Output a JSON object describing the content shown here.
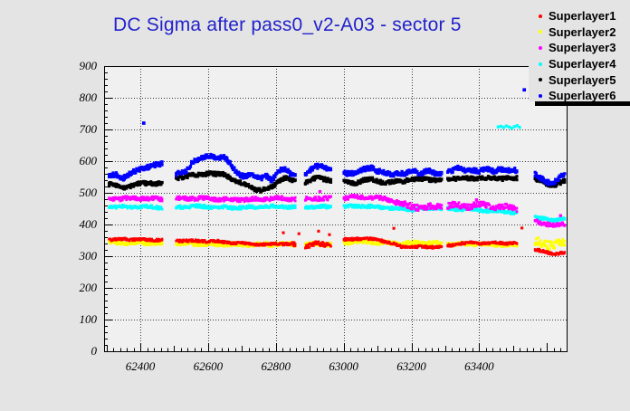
{
  "title": {
    "text": "DC Sigma after pass0_v2-A03 - sector 5",
    "color": "#2222cc"
  },
  "colors": {
    "page_bg": "#e4e4e4",
    "plot_bg": "#f0f0f0",
    "frame": "#000000",
    "grid": "#3a3a3a",
    "tick_label": "#000000"
  },
  "legend": {
    "entries": [
      {
        "label": "Superlayer1",
        "color": "#ff0000"
      },
      {
        "label": "Superlayer2",
        "color": "#ffff00"
      },
      {
        "label": "Superlayer3",
        "color": "#ff00ff"
      },
      {
        "label": "Superlayer4",
        "color": "#00ffff"
      },
      {
        "label": "Superlayer5",
        "color": "#000000"
      },
      {
        "label": "Superlayer6",
        "color": "#0000ff"
      }
    ]
  },
  "chart_data": {
    "type": "scatter",
    "title": "DC Sigma after pass0_v2-A03 - sector 5",
    "xlabel": "",
    "ylabel": "",
    "xlim": [
      62293,
      63658
    ],
    "ylim": [
      0,
      900
    ],
    "xticks": {
      "values": [
        62400,
        62600,
        62800,
        63000,
        63200,
        63400
      ],
      "labels": [
        "62400",
        "62600",
        "62800",
        "63000",
        "63200",
        "63400"
      ]
    },
    "yticks": {
      "values": [
        0,
        100,
        200,
        300,
        400,
        500,
        600,
        700,
        800,
        900
      ],
      "labels": [
        "0",
        "100",
        "200",
        "300",
        "400",
        "500",
        "600",
        "700",
        "800",
        "900"
      ]
    },
    "x_minor_step": 20,
    "y_minor_step": 20,
    "grid": "dotted",
    "legend_position": "top-right-outside",
    "data_range": [
      62308,
      63652
    ],
    "gaps": [
      [
        62467,
        62505
      ],
      [
        62860,
        62884
      ],
      [
        62965,
        62998
      ],
      [
        63290,
        63304
      ],
      [
        63514,
        63562
      ]
    ],
    "draw_order": [
      1,
      0,
      3,
      2,
      4,
      5
    ],
    "series": [
      {
        "name": "Superlayer1",
        "color": "#ff0000",
        "marker_px": 2.6,
        "halfwidth": 4,
        "wide_ranges": [
          [
            62845,
            63000,
            7
          ]
        ],
        "anchors": [
          [
            62308,
            352
          ],
          [
            62360,
            354
          ],
          [
            62420,
            352
          ],
          [
            62465,
            351
          ],
          [
            62505,
            349
          ],
          [
            62560,
            348
          ],
          [
            62620,
            347
          ],
          [
            62680,
            342
          ],
          [
            62720,
            340
          ],
          [
            62760,
            336
          ],
          [
            62800,
            340
          ],
          [
            62832,
            338
          ],
          [
            62862,
            336
          ],
          [
            62886,
            334
          ],
          [
            62922,
            338
          ],
          [
            62965,
            336
          ],
          [
            63000,
            352
          ],
          [
            63042,
            356
          ],
          [
            63082,
            354
          ],
          [
            63112,
            350
          ],
          [
            63142,
            340
          ],
          [
            63172,
            330
          ],
          [
            63202,
            328
          ],
          [
            63242,
            330
          ],
          [
            63282,
            328
          ],
          [
            63312,
            334
          ],
          [
            63342,
            340
          ],
          [
            63382,
            342
          ],
          [
            63422,
            340
          ],
          [
            63462,
            342
          ],
          [
            63514,
            340
          ],
          [
            63562,
            322
          ],
          [
            63590,
            314
          ],
          [
            63615,
            308
          ],
          [
            63635,
            309
          ],
          [
            63652,
            312
          ]
        ],
        "outliers": [
          [
            62822,
            374
          ],
          [
            62868,
            371
          ],
          [
            62926,
            379
          ],
          [
            62958,
            368
          ],
          [
            63148,
            388
          ],
          [
            63526,
            389
          ]
        ]
      },
      {
        "name": "Superlayer2",
        "color": "#ffff00",
        "marker_px": 2.8,
        "halfwidth": 6,
        "wide_ranges": [
          [
            63556,
            63652,
            14
          ]
        ],
        "anchors": [
          [
            62308,
            343
          ],
          [
            62400,
            342
          ],
          [
            62465,
            341
          ],
          [
            62505,
            340
          ],
          [
            62560,
            339
          ],
          [
            62620,
            338
          ],
          [
            62680,
            337
          ],
          [
            62740,
            336
          ],
          [
            62800,
            338
          ],
          [
            62862,
            337
          ],
          [
            62886,
            336
          ],
          [
            62922,
            338
          ],
          [
            62965,
            337
          ],
          [
            63000,
            344
          ],
          [
            63042,
            346
          ],
          [
            63082,
            345
          ],
          [
            63122,
            342
          ],
          [
            63162,
            340
          ],
          [
            63202,
            341
          ],
          [
            63242,
            342
          ],
          [
            63282,
            340
          ],
          [
            63322,
            338
          ],
          [
            63362,
            339
          ],
          [
            63402,
            338
          ],
          [
            63442,
            337
          ],
          [
            63482,
            336
          ],
          [
            63514,
            336
          ],
          [
            63562,
            342
          ],
          [
            63590,
            340
          ],
          [
            63615,
            338
          ],
          [
            63652,
            342
          ]
        ],
        "outliers": []
      },
      {
        "name": "Superlayer3",
        "color": "#ff00ff",
        "marker_px": 2.8,
        "halfwidth": 6,
        "wide_ranges": [
          [
            63150,
            63514,
            9
          ]
        ],
        "anchors": [
          [
            62308,
            481
          ],
          [
            62400,
            483
          ],
          [
            62465,
            480
          ],
          [
            62505,
            481
          ],
          [
            62560,
            483
          ],
          [
            62620,
            480
          ],
          [
            62680,
            478
          ],
          [
            62740,
            480
          ],
          [
            62800,
            483
          ],
          [
            62862,
            481
          ],
          [
            62886,
            480
          ],
          [
            62922,
            483
          ],
          [
            62965,
            481
          ],
          [
            63000,
            484
          ],
          [
            63042,
            487
          ],
          [
            63082,
            485
          ],
          [
            63122,
            481
          ],
          [
            63152,
            474
          ],
          [
            63172,
            464
          ],
          [
            63202,
            457
          ],
          [
            63242,
            454
          ],
          [
            63282,
            457
          ],
          [
            63322,
            461
          ],
          [
            63362,
            457
          ],
          [
            63402,
            462
          ],
          [
            63442,
            457
          ],
          [
            63482,
            454
          ],
          [
            63514,
            451
          ],
          [
            63562,
            412
          ],
          [
            63590,
            404
          ],
          [
            63620,
            397
          ],
          [
            63652,
            402
          ]
        ],
        "outliers": [
          [
            62930,
            504
          ],
          [
            63392,
            478
          ],
          [
            63640,
            428
          ]
        ]
      },
      {
        "name": "Superlayer4",
        "color": "#00ffff",
        "marker_px": 2.8,
        "halfwidth": 5,
        "wide_ranges": [],
        "anchors": [
          [
            62308,
            455
          ],
          [
            62400,
            456
          ],
          [
            62465,
            454
          ],
          [
            62505,
            455
          ],
          [
            62560,
            457
          ],
          [
            62620,
            455
          ],
          [
            62680,
            453
          ],
          [
            62740,
            455
          ],
          [
            62800,
            457
          ],
          [
            62862,
            455
          ],
          [
            62886,
            454
          ],
          [
            62922,
            456
          ],
          [
            62965,
            455
          ],
          [
            63000,
            456
          ],
          [
            63042,
            458
          ],
          [
            63082,
            456
          ],
          [
            63122,
            453
          ],
          [
            63162,
            450
          ],
          [
            63202,
            448
          ],
          [
            63242,
            450
          ],
          [
            63282,
            452
          ],
          [
            63322,
            448
          ],
          [
            63362,
            450
          ],
          [
            63402,
            446
          ],
          [
            63442,
            443
          ],
          [
            63482,
            440
          ],
          [
            63514,
            438
          ],
          [
            63562,
            426
          ],
          [
            63590,
            418
          ],
          [
            63620,
            412
          ],
          [
            63652,
            420
          ]
        ],
        "outliers": [
          [
            63456,
            708
          ],
          [
            63464,
            710
          ],
          [
            63472,
            706
          ],
          [
            63480,
            711
          ],
          [
            63488,
            708
          ],
          [
            63496,
            704
          ],
          [
            63504,
            709
          ],
          [
            63512,
            712
          ],
          [
            63519,
            707
          ]
        ]
      },
      {
        "name": "Superlayer5",
        "color": "#000000",
        "marker_px": 3.2,
        "halfwidth": 6,
        "wide_ranges": [],
        "anchors": [
          [
            62308,
            527
          ],
          [
            62330,
            521
          ],
          [
            62352,
            517
          ],
          [
            62375,
            524
          ],
          [
            62400,
            528
          ],
          [
            62430,
            531
          ],
          [
            62465,
            529
          ],
          [
            62505,
            546
          ],
          [
            62535,
            551
          ],
          [
            62558,
            556
          ],
          [
            62580,
            559
          ],
          [
            62602,
            561
          ],
          [
            62625,
            557
          ],
          [
            62645,
            559
          ],
          [
            62662,
            551
          ],
          [
            62680,
            537
          ],
          [
            62700,
            529
          ],
          [
            62720,
            524
          ],
          [
            62740,
            511
          ],
          [
            62756,
            507
          ],
          [
            62772,
            511
          ],
          [
            62786,
            519
          ],
          [
            62802,
            531
          ],
          [
            62816,
            544
          ],
          [
            62832,
            547
          ],
          [
            62848,
            539
          ],
          [
            62862,
            534
          ],
          [
            62886,
            531
          ],
          [
            62902,
            539
          ],
          [
            62922,
            547
          ],
          [
            62942,
            544
          ],
          [
            62965,
            539
          ],
          [
            63000,
            537
          ],
          [
            63032,
            531
          ],
          [
            63062,
            539
          ],
          [
            63082,
            544
          ],
          [
            63102,
            537
          ],
          [
            63132,
            531
          ],
          [
            63162,
            537
          ],
          [
            63202,
            541
          ],
          [
            63242,
            544
          ],
          [
            63282,
            539
          ],
          [
            63322,
            547
          ],
          [
            63362,
            544
          ],
          [
            63402,
            547
          ],
          [
            63442,
            544
          ],
          [
            63482,
            547
          ],
          [
            63514,
            544
          ],
          [
            63562,
            544
          ],
          [
            63585,
            537
          ],
          [
            63605,
            524
          ],
          [
            63625,
            527
          ],
          [
            63652,
            537
          ]
        ],
        "outliers": []
      },
      {
        "name": "Superlayer6",
        "color": "#0000ff",
        "marker_px": 3.2,
        "halfwidth": 7,
        "wide_ranges": [],
        "anchors": [
          [
            62308,
            552
          ],
          [
            62330,
            558
          ],
          [
            62350,
            548
          ],
          [
            62372,
            560
          ],
          [
            62400,
            575
          ],
          [
            62430,
            585
          ],
          [
            62465,
            590
          ],
          [
            62505,
            560
          ],
          [
            62535,
            566
          ],
          [
            62555,
            600
          ],
          [
            62575,
            610
          ],
          [
            62600,
            614
          ],
          [
            62625,
            611
          ],
          [
            62645,
            616
          ],
          [
            62660,
            600
          ],
          [
            62672,
            578
          ],
          [
            62690,
            558
          ],
          [
            62705,
            553
          ],
          [
            62722,
            560
          ],
          [
            62740,
            548
          ],
          [
            62758,
            544
          ],
          [
            62772,
            554
          ],
          [
            62788,
            540
          ],
          [
            62806,
            570
          ],
          [
            62828,
            574
          ],
          [
            62848,
            556
          ],
          [
            62862,
            552
          ],
          [
            62886,
            554
          ],
          [
            62900,
            568
          ],
          [
            62915,
            583
          ],
          [
            62932,
            587
          ],
          [
            62947,
            579
          ],
          [
            62965,
            574
          ],
          [
            63000,
            564
          ],
          [
            63030,
            561
          ],
          [
            63060,
            574
          ],
          [
            63082,
            581
          ],
          [
            63100,
            569
          ],
          [
            63122,
            561
          ],
          [
            63142,
            557
          ],
          [
            63162,
            564
          ],
          [
            63182,
            559
          ],
          [
            63205,
            569
          ],
          [
            63225,
            564
          ],
          [
            63252,
            571
          ],
          [
            63272,
            559
          ],
          [
            63300,
            564
          ],
          [
            63322,
            571
          ],
          [
            63342,
            577
          ],
          [
            63362,
            569
          ],
          [
            63382,
            574
          ],
          [
            63402,
            567
          ],
          [
            63422,
            574
          ],
          [
            63442,
            569
          ],
          [
            63462,
            577
          ],
          [
            63482,
            569
          ],
          [
            63505,
            571
          ],
          [
            63514,
            567
          ],
          [
            63562,
            558
          ],
          [
            63580,
            548
          ],
          [
            63600,
            536
          ],
          [
            63616,
            530
          ],
          [
            63632,
            543
          ],
          [
            63652,
            556
          ]
        ],
        "outliers": [
          [
            62410,
            720
          ],
          [
            63533,
            825
          ]
        ]
      }
    ]
  }
}
